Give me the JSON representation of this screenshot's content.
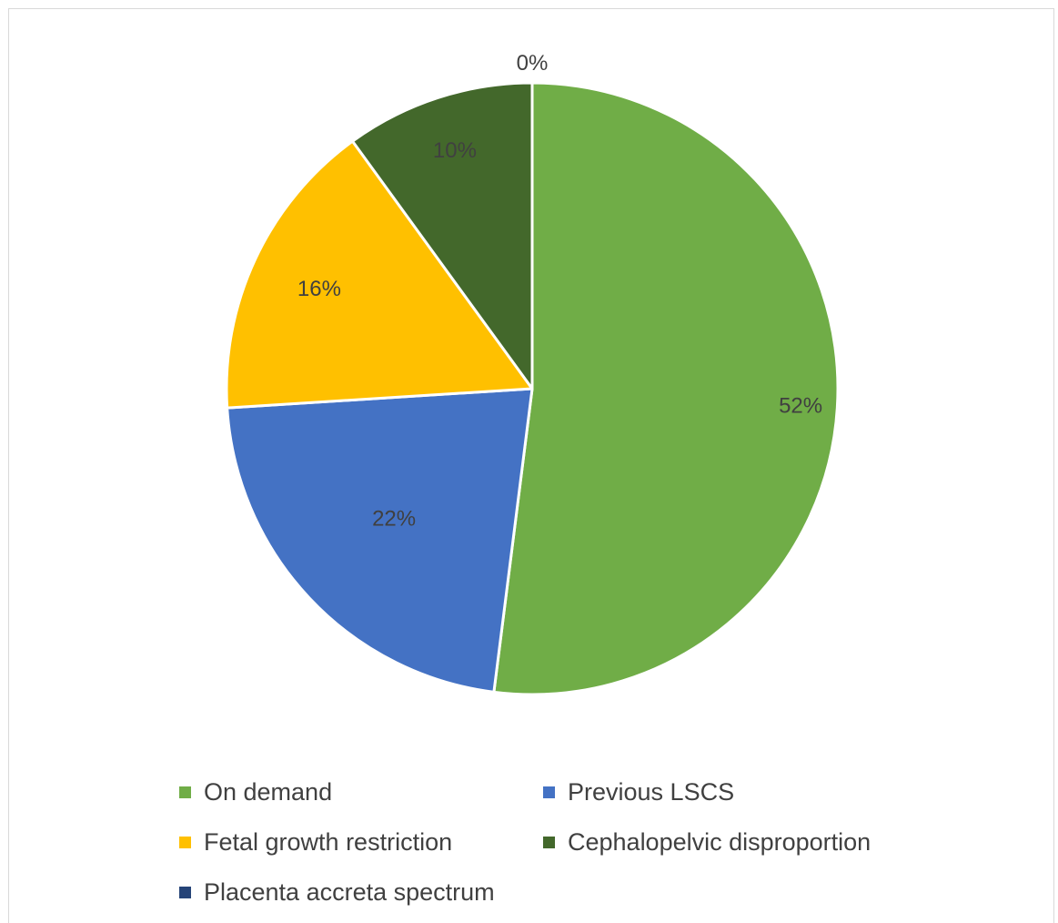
{
  "chart_data": {
    "type": "pie",
    "categories": [
      "On demand",
      "Previous LSCS",
      "Fetal growth restriction",
      "Cephalopelvic disproportion",
      "Placenta accreta spectrum"
    ],
    "values": [
      52,
      22,
      16,
      10,
      0
    ],
    "labels": [
      "52%",
      "22%",
      "16%",
      "10%",
      "0%"
    ],
    "colors": [
      "#70AD47",
      "#4472C4",
      "#FFC000",
      "#43682B",
      "#264478"
    ],
    "legend_position": "bottom",
    "start_angle": "12 o'clock, clockwise"
  }
}
